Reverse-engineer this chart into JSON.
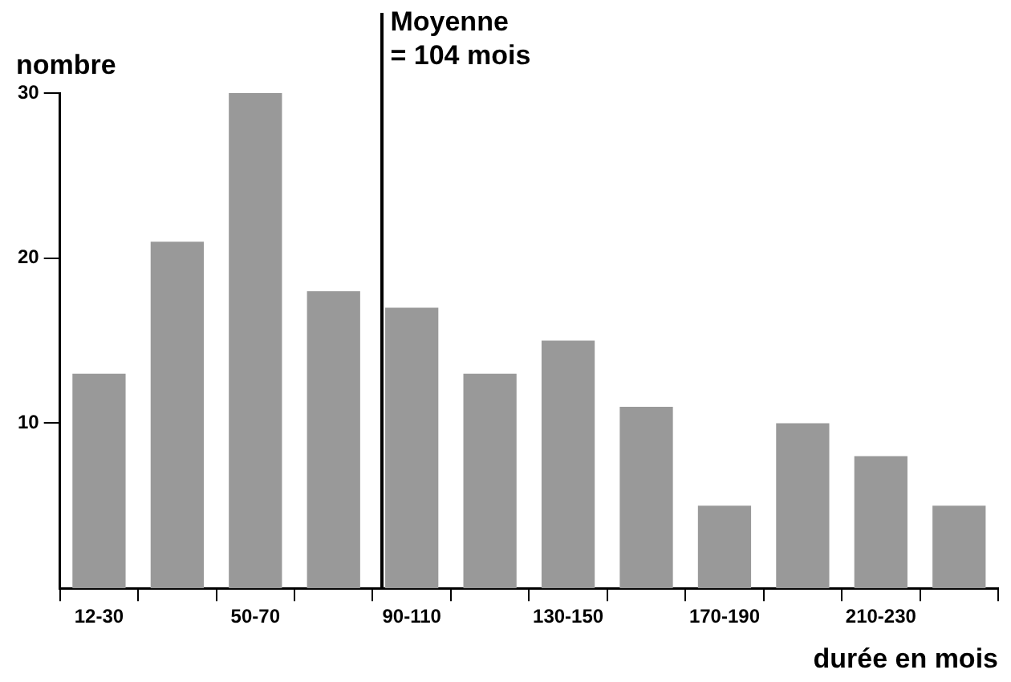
{
  "chart_data": {
    "type": "bar",
    "ylabel": "nombre",
    "xlabel": "durée en mois",
    "categories": [
      "12-30",
      null,
      "50-70",
      null,
      "90-110",
      null,
      "130-150",
      null,
      "170-190",
      null,
      "210-230",
      null
    ],
    "values": [
      13,
      21,
      30,
      18,
      17,
      13,
      15,
      11,
      5,
      10,
      8,
      5
    ],
    "color": "#999999",
    "ylim": [
      0,
      30
    ],
    "yticks": [
      10,
      20,
      30
    ],
    "grid": false,
    "legend": false,
    "annotations": [
      "Moyenne\n= 104 mois"
    ]
  }
}
